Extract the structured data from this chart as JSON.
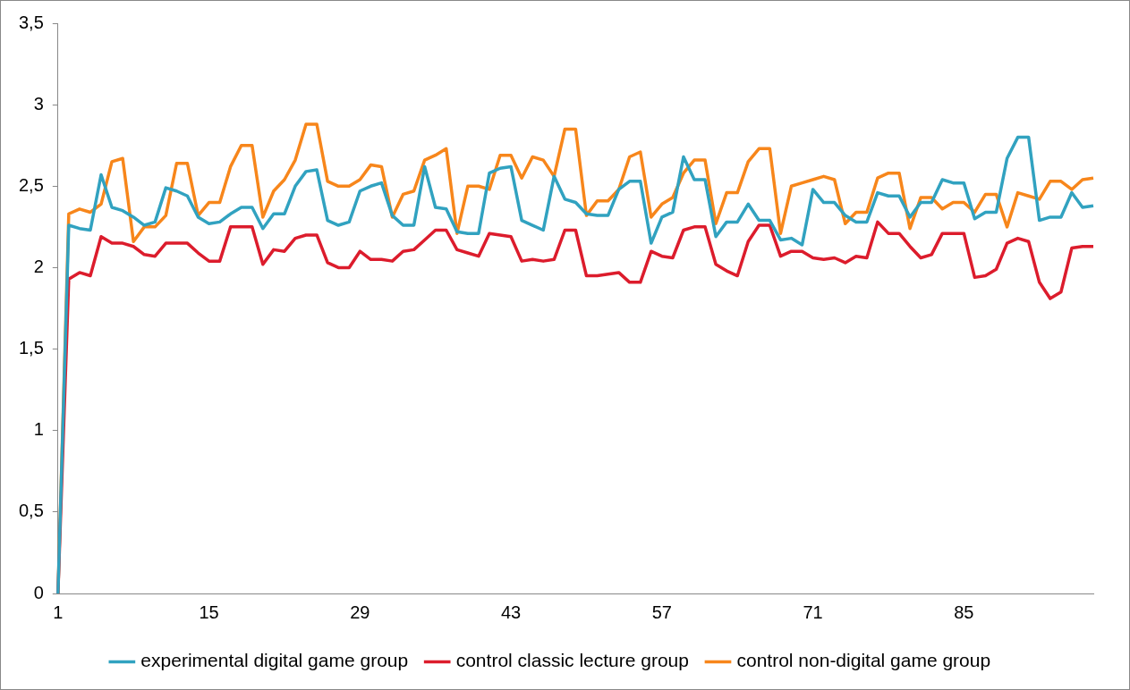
{
  "chart_data": {
    "type": "line",
    "categories": [
      "1",
      null,
      null,
      null,
      null,
      null,
      null,
      null,
      null,
      null,
      null,
      null,
      null,
      null,
      "15",
      null,
      null,
      null,
      null,
      null,
      null,
      null,
      null,
      null,
      null,
      null,
      null,
      null,
      "29",
      null,
      null,
      null,
      null,
      null,
      null,
      null,
      null,
      null,
      null,
      null,
      null,
      null,
      "43",
      null,
      null,
      null,
      null,
      null,
      null,
      null,
      null,
      null,
      null,
      null,
      null,
      null,
      "57",
      null,
      null,
      null,
      null,
      null,
      null,
      null,
      null,
      null,
      null,
      null,
      null,
      null,
      "71",
      null,
      null,
      null,
      null,
      null,
      null,
      null,
      null,
      null,
      null,
      null,
      null,
      null,
      "85",
      null,
      null,
      null,
      null,
      null,
      null,
      null,
      null,
      null,
      null,
      null,
      null
    ],
    "series": [
      {
        "name": "experimental digital game group",
        "color": "#31a2c0",
        "values": [
          0,
          2.26,
          2.24,
          2.23,
          2.57,
          2.37,
          2.35,
          2.31,
          2.26,
          2.28,
          2.49,
          2.47,
          2.44,
          2.31,
          2.27,
          2.28,
          2.33,
          2.37,
          2.37,
          2.24,
          2.33,
          2.33,
          2.5,
          2.59,
          2.6,
          2.29,
          2.26,
          2.28,
          2.47,
          2.5,
          2.52,
          2.32,
          2.26,
          2.26,
          2.62,
          2.37,
          2.36,
          2.22,
          2.21,
          2.21,
          2.58,
          2.61,
          2.62,
          2.29,
          2.26,
          2.23,
          2.56,
          2.42,
          2.4,
          2.33,
          2.32,
          2.32,
          2.48,
          2.53,
          2.53,
          2.15,
          2.31,
          2.34,
          2.68,
          2.54,
          2.54,
          2.19,
          2.28,
          2.28,
          2.39,
          2.29,
          2.29,
          2.17,
          2.18,
          2.14,
          2.48,
          2.4,
          2.4,
          2.32,
          2.28,
          2.28,
          2.46,
          2.44,
          2.44,
          2.31,
          2.4,
          2.4,
          2.54,
          2.52,
          2.52,
          2.3,
          2.34,
          2.34,
          2.67,
          2.8,
          2.8,
          2.29,
          2.31,
          2.31,
          2.46,
          2.37,
          2.38
        ]
      },
      {
        "name": "control classic lecture group",
        "color": "#dc1c2c",
        "values": [
          0,
          1.93,
          1.97,
          1.95,
          2.19,
          2.15,
          2.15,
          2.13,
          2.08,
          2.07,
          2.15,
          2.15,
          2.15,
          2.09,
          2.04,
          2.04,
          2.25,
          2.25,
          2.25,
          2.02,
          2.11,
          2.1,
          2.18,
          2.2,
          2.2,
          2.03,
          2.0,
          2.0,
          2.1,
          2.05,
          2.05,
          2.04,
          2.1,
          2.11,
          2.17,
          2.23,
          2.23,
          2.11,
          2.09,
          2.07,
          2.21,
          2.2,
          2.19,
          2.04,
          2.05,
          2.04,
          2.05,
          2.23,
          2.23,
          1.95,
          1.95,
          1.96,
          1.97,
          1.91,
          1.91,
          2.1,
          2.07,
          2.06,
          2.23,
          2.25,
          2.25,
          2.02,
          1.98,
          1.95,
          2.16,
          2.26,
          2.26,
          2.07,
          2.1,
          2.1,
          2.06,
          2.05,
          2.06,
          2.03,
          2.07,
          2.06,
          2.28,
          2.21,
          2.21,
          2.13,
          2.06,
          2.08,
          2.21,
          2.21,
          2.21,
          1.94,
          1.95,
          1.99,
          2.15,
          2.18,
          2.16,
          1.91,
          1.81,
          1.85,
          2.12,
          2.13,
          2.13
        ]
      },
      {
        "name": "control non-digital game group",
        "color": "#f7861b",
        "values": [
          0,
          2.33,
          2.36,
          2.34,
          2.39,
          2.65,
          2.67,
          2.16,
          2.25,
          2.25,
          2.32,
          2.64,
          2.64,
          2.32,
          2.4,
          2.4,
          2.62,
          2.75,
          2.75,
          2.31,
          2.47,
          2.54,
          2.66,
          2.88,
          2.88,
          2.53,
          2.5,
          2.5,
          2.54,
          2.63,
          2.62,
          2.31,
          2.45,
          2.47,
          2.66,
          2.69,
          2.73,
          2.21,
          2.5,
          2.5,
          2.48,
          2.69,
          2.69,
          2.55,
          2.68,
          2.66,
          2.56,
          2.85,
          2.85,
          2.32,
          2.41,
          2.41,
          2.48,
          2.68,
          2.71,
          2.31,
          2.39,
          2.43,
          2.58,
          2.66,
          2.66,
          2.27,
          2.46,
          2.46,
          2.65,
          2.73,
          2.73,
          2.21,
          2.5,
          2.52,
          2.54,
          2.56,
          2.54,
          2.27,
          2.34,
          2.34,
          2.55,
          2.58,
          2.58,
          2.24,
          2.43,
          2.43,
          2.36,
          2.4,
          2.4,
          2.34,
          2.45,
          2.45,
          2.25,
          2.46,
          2.44,
          2.42,
          2.53,
          2.53,
          2.48,
          2.54,
          2.55
        ]
      }
    ],
    "ylim": [
      0,
      3.5
    ],
    "yticks": [
      0,
      {
        "value": 0.5,
        "label": "0,5"
      },
      1,
      {
        "value": 1.5,
        "label": "1,5"
      },
      2,
      {
        "value": 2.5,
        "label": "2,5"
      },
      3,
      {
        "value": 3.5,
        "label": "3,5"
      }
    ],
    "grid": false,
    "legend": "bottom",
    "marker": "none",
    "line_style": "solid"
  }
}
